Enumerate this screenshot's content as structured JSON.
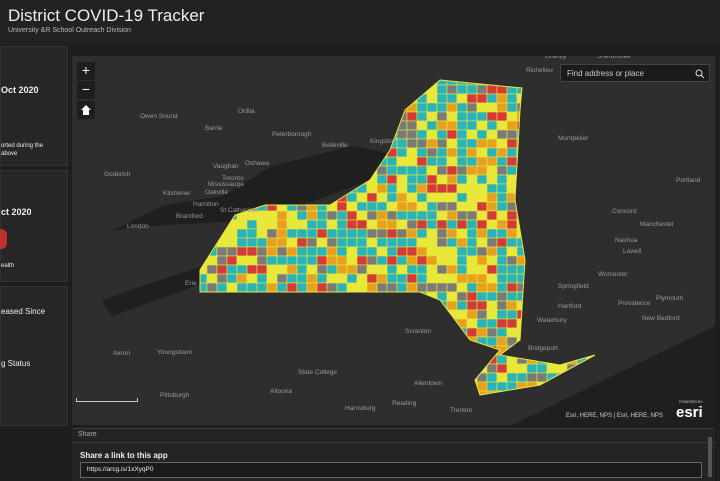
{
  "header": {
    "title": "District COVID-19 Tracker",
    "subtitle": "University &R School Outreach Division"
  },
  "sidebar": {
    "panels": [
      {
        "lines": [
          "Oct 2020",
          "orted during the",
          "above"
        ]
      },
      {
        "lines": [
          "ct 2020",
          "ealth"
        ]
      },
      {
        "lines": [
          "eased Since",
          "g Status"
        ]
      }
    ]
  },
  "map": {
    "zoom_in": "+",
    "zoom_out": "−",
    "search_placeholder": "Find address or place",
    "labels": [
      "Owen Sound",
      "Barrie",
      "Orillia",
      "Peterborough",
      "Belleville",
      "Kingston",
      "Goderich",
      "Vaughan",
      "Oshawa",
      "Toronto",
      "Mississauga",
      "Oakville",
      "Kitchener",
      "Hamilton",
      "Brantford",
      "St Catharines",
      "London",
      "Erie",
      "Akron",
      "Youngstown",
      "Pittsburgh",
      "Altoona",
      "State College",
      "Harrisburg",
      "Reading",
      "Allentown",
      "Scranton",
      "Trenton",
      "Bridgeport",
      "Waterbury",
      "Hartford",
      "Springfield",
      "Worcester",
      "Providence",
      "New Bedford",
      "Plymouth",
      "Lowell",
      "Nashua",
      "Manchester",
      "Concord",
      "Portland",
      "Montpelier",
      "Granby",
      "Richelieu",
      "Sherbrooke"
    ],
    "attribution": "Esri, HERE, NPS | Esri, HERE, NPS",
    "powered_by": "POWERED BY",
    "logo": "esri"
  },
  "share": {
    "tab": "Share",
    "heading": "Share a link to this app",
    "url": "https://arcg.is/1xXyqP0"
  }
}
